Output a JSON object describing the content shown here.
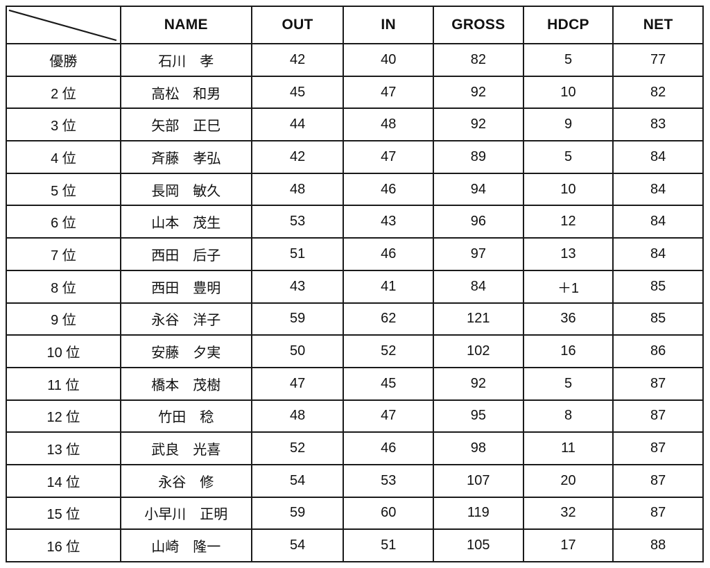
{
  "colors": {
    "background": "#ffffff",
    "border": "#1a1a1a",
    "text": "#111111"
  },
  "table": {
    "corner_label": "",
    "columns": [
      "NAME",
      "OUT",
      "IN",
      "GROSS",
      "HDCP",
      "NET"
    ],
    "rows": [
      {
        "rank": "優勝",
        "name": "石川　孝",
        "out": "42",
        "in": "40",
        "gross": "82",
        "hdcp": "5",
        "net": "77"
      },
      {
        "rank": "2 位",
        "name": "高松　和男",
        "out": "45",
        "in": "47",
        "gross": "92",
        "hdcp": "10",
        "net": "82"
      },
      {
        "rank": "3 位",
        "name": "矢部　正巳",
        "out": "44",
        "in": "48",
        "gross": "92",
        "hdcp": "9",
        "net": "83"
      },
      {
        "rank": "4 位",
        "name": "斉藤　孝弘",
        "out": "42",
        "in": "47",
        "gross": "89",
        "hdcp": "5",
        "net": "84"
      },
      {
        "rank": "5 位",
        "name": "長岡　敏久",
        "out": "48",
        "in": "46",
        "gross": "94",
        "hdcp": "10",
        "net": "84"
      },
      {
        "rank": "6 位",
        "name": "山本　茂生",
        "out": "53",
        "in": "43",
        "gross": "96",
        "hdcp": "12",
        "net": "84"
      },
      {
        "rank": "7 位",
        "name": "西田　后子",
        "out": "51",
        "in": "46",
        "gross": "97",
        "hdcp": "13",
        "net": "84"
      },
      {
        "rank": "8 位",
        "name": "西田　豊明",
        "out": "43",
        "in": "41",
        "gross": "84",
        "hdcp": "＋1",
        "net": "85"
      },
      {
        "rank": "9 位",
        "name": "永谷　洋子",
        "out": "59",
        "in": "62",
        "gross": "121",
        "hdcp": "36",
        "net": "85"
      },
      {
        "rank": "10 位",
        "name": "安藤　夕実",
        "out": "50",
        "in": "52",
        "gross": "102",
        "hdcp": "16",
        "net": "86"
      },
      {
        "rank": "11 位",
        "name": "橋本　茂樹",
        "out": "47",
        "in": "45",
        "gross": "92",
        "hdcp": "5",
        "net": "87"
      },
      {
        "rank": "12 位",
        "name": "竹田　稔",
        "out": "48",
        "in": "47",
        "gross": "95",
        "hdcp": "8",
        "net": "87"
      },
      {
        "rank": "13 位",
        "name": "武良　光喜",
        "out": "52",
        "in": "46",
        "gross": "98",
        "hdcp": "11",
        "net": "87"
      },
      {
        "rank": "14 位",
        "name": "永谷　修",
        "out": "54",
        "in": "53",
        "gross": "107",
        "hdcp": "20",
        "net": "87"
      },
      {
        "rank": "15 位",
        "name": "小早川　正明",
        "out": "59",
        "in": "60",
        "gross": "119",
        "hdcp": "32",
        "net": "87"
      },
      {
        "rank": "16 位",
        "name": "山崎　隆一",
        "out": "54",
        "in": "51",
        "gross": "105",
        "hdcp": "17",
        "net": "88"
      }
    ]
  }
}
